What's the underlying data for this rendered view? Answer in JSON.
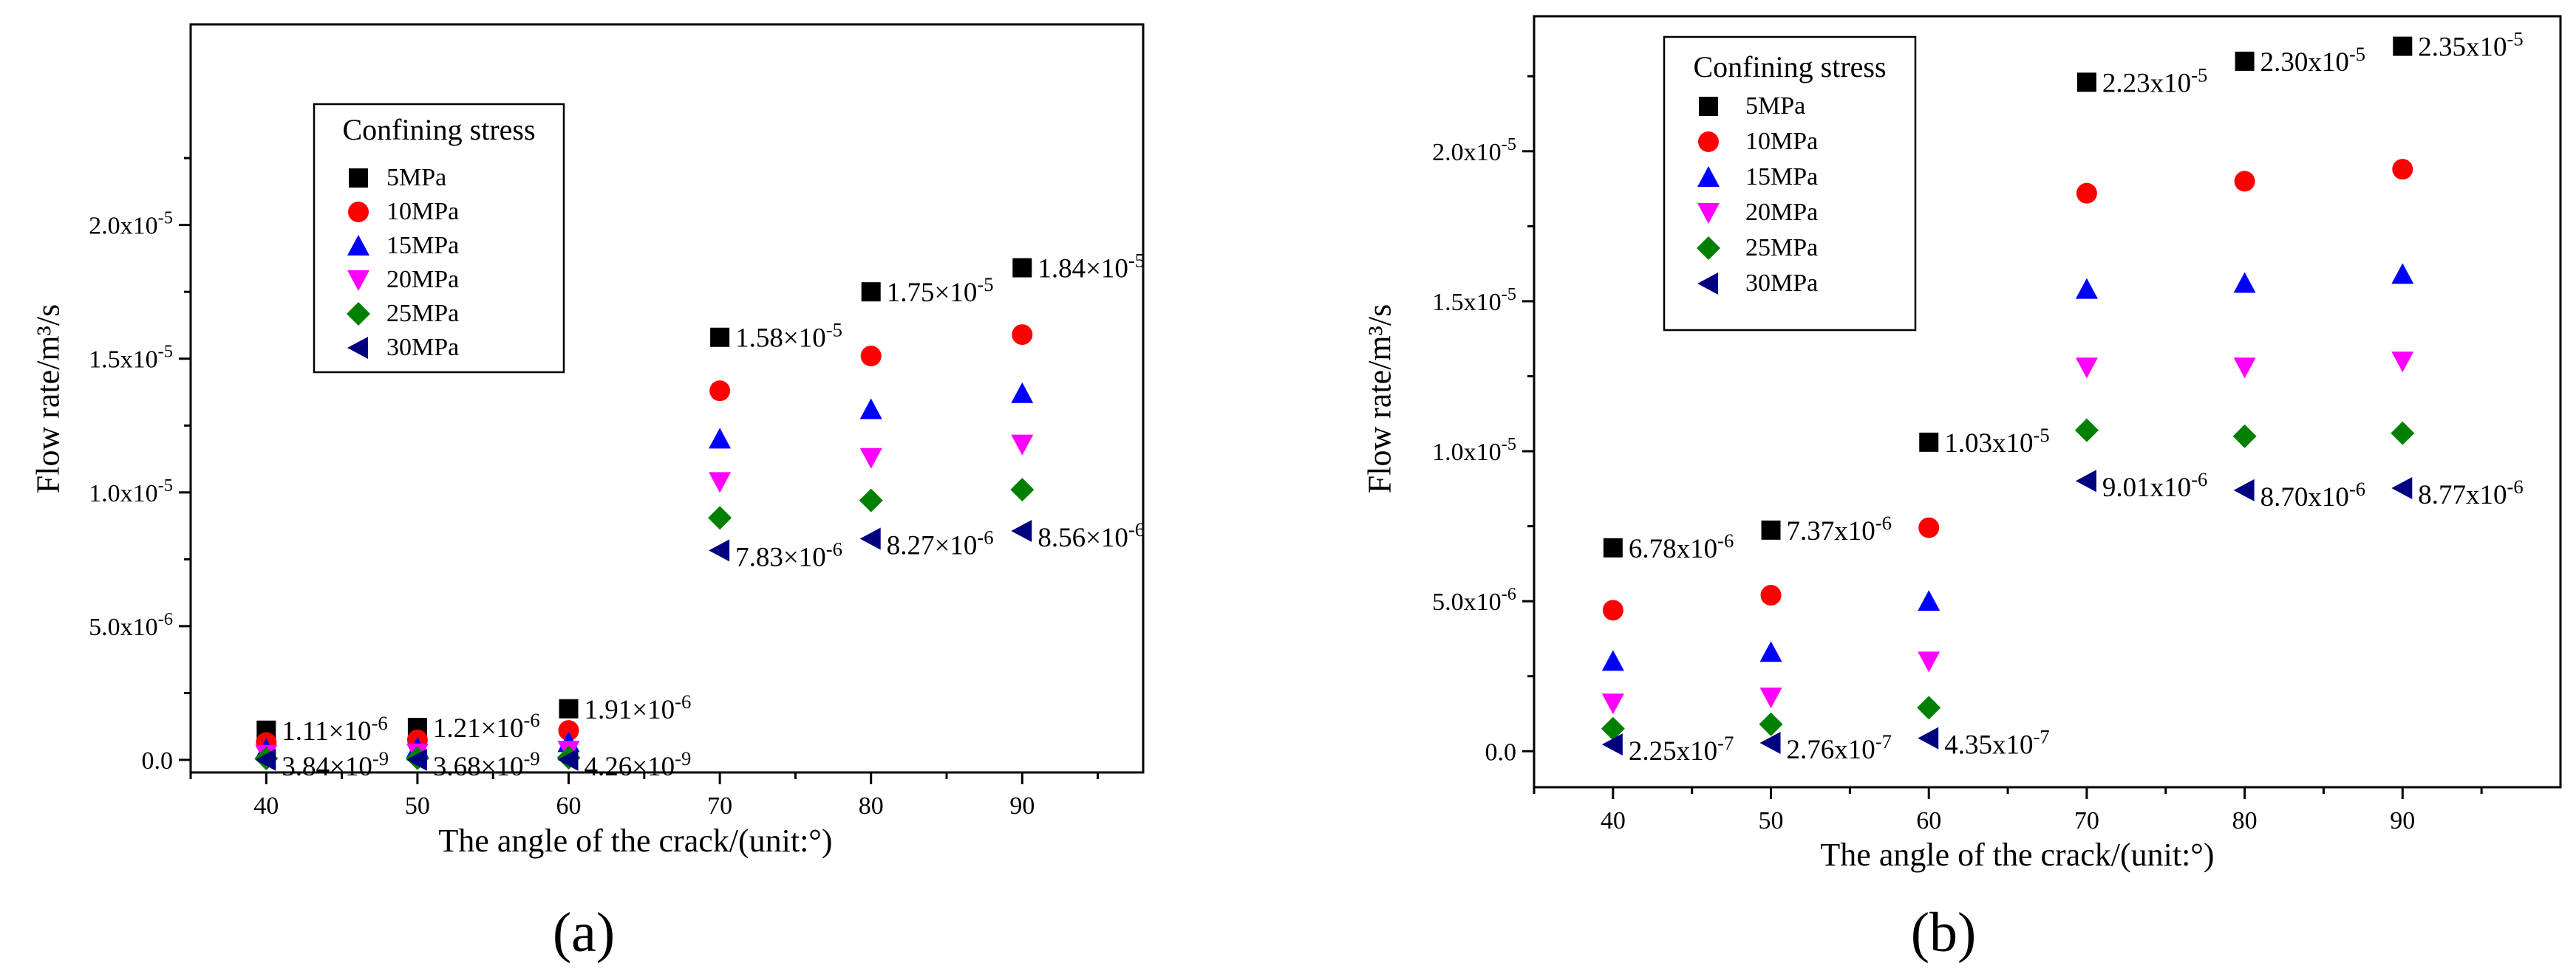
{
  "figure": {
    "panels": [
      "a",
      "b"
    ]
  },
  "chart_data": [
    {
      "type": "scatter",
      "panel_label": "(a)",
      "xlabel": "The angle of the crack/(unit:°)",
      "ylabel": "Flow rate/m³/s",
      "x": [
        40,
        50,
        60,
        70,
        80,
        90
      ],
      "xlim": [
        35,
        98
      ],
      "ylim": [
        -4.7e-07,
        2.75e-05
      ],
      "xticks": [
        40,
        50,
        60,
        70,
        80,
        90
      ],
      "yticks": [
        {
          "value": 0,
          "mant": "0.0",
          "exp": ""
        },
        {
          "value": 5e-06,
          "mant": "5.0x10",
          "exp": "-6"
        },
        {
          "value": 1e-05,
          "mant": "1.0x10",
          "exp": "-5"
        },
        {
          "value": 1.5e-05,
          "mant": "1.5x10",
          "exp": "-5"
        },
        {
          "value": 2e-05,
          "mant": "2.0x10",
          "exp": "-5"
        }
      ],
      "legend": {
        "title": "Confining stress",
        "position": "upper-left"
      },
      "series": [
        {
          "name": "5MPa",
          "marker": "square",
          "color": "#000000",
          "values": [
            1.11e-06,
            1.21e-06,
            1.91e-06,
            1.58e-05,
            1.75e-05,
            1.84e-05
          ]
        },
        {
          "name": "10MPa",
          "marker": "circle",
          "color": "#ff0000",
          "values": [
            6.5e-07,
            7.5e-07,
            1.1e-06,
            1.38e-05,
            1.51e-05,
            1.59e-05
          ]
        },
        {
          "name": "15MPa",
          "marker": "triangle-up",
          "color": "#0000ff",
          "values": [
            4e-07,
            4.5e-07,
            6.5e-07,
            1.2e-05,
            1.31e-05,
            1.37e-05
          ]
        },
        {
          "name": "20MPa",
          "marker": "triangle-down",
          "color": "#ff00ff",
          "values": [
            2e-07,
            2.5e-07,
            3.5e-07,
            1.04e-05,
            1.13e-05,
            1.18e-05
          ]
        },
        {
          "name": "25MPa",
          "marker": "diamond",
          "color": "#008000",
          "values": [
            5e-08,
            6e-08,
            8e-08,
            9.05e-06,
            9.7e-06,
            1.01e-05
          ]
        },
        {
          "name": "30MPa",
          "marker": "triangle-left",
          "color": "#000080",
          "values": [
            3.84e-09,
            3.68e-09,
            4.26e-09,
            7.83e-06,
            8.27e-06,
            8.56e-06
          ]
        }
      ],
      "annotations": [
        {
          "x": 40,
          "series": 0,
          "mant": "1.11×10",
          "exp": "-6"
        },
        {
          "x": 50,
          "series": 0,
          "mant": "1.21×10",
          "exp": "-6"
        },
        {
          "x": 60,
          "series": 0,
          "mant": "1.91×10",
          "exp": "-6"
        },
        {
          "x": 70,
          "series": 0,
          "mant": "1.58×10",
          "exp": "-5"
        },
        {
          "x": 80,
          "series": 0,
          "mant": "1.75×10",
          "exp": "-5"
        },
        {
          "x": 90,
          "series": 0,
          "mant": "1.84×10",
          "exp": "-5"
        },
        {
          "x": 40,
          "series": 5,
          "mant": "3.84×10",
          "exp": "-9"
        },
        {
          "x": 50,
          "series": 5,
          "mant": "3.68×10",
          "exp": "-9"
        },
        {
          "x": 60,
          "series": 5,
          "mant": "4.26×10",
          "exp": "-9"
        },
        {
          "x": 70,
          "series": 5,
          "mant": "7.83×10",
          "exp": "-6"
        },
        {
          "x": 80,
          "series": 5,
          "mant": "8.27×10",
          "exp": "-6"
        },
        {
          "x": 90,
          "series": 5,
          "mant": "8.56×10",
          "exp": "-6"
        }
      ]
    },
    {
      "type": "scatter",
      "panel_label": "(b)",
      "xlabel": "The angle of the crack/(unit:°)",
      "ylabel": "Flow rate/m³/s",
      "x": [
        40,
        50,
        60,
        70,
        80,
        90
      ],
      "xlim": [
        35,
        100
      ],
      "ylim": [
        -1.2e-06,
        2.45e-05
      ],
      "xticks": [
        40,
        50,
        60,
        70,
        80,
        90
      ],
      "yticks": [
        {
          "value": 0,
          "mant": "0.0",
          "exp": ""
        },
        {
          "value": 5e-06,
          "mant": "5.0x10",
          "exp": "-6"
        },
        {
          "value": 1e-05,
          "mant": "1.0x10",
          "exp": "-5"
        },
        {
          "value": 1.5e-05,
          "mant": "1.5x10",
          "exp": "-5"
        },
        {
          "value": 2e-05,
          "mant": "2.0x10",
          "exp": "-5"
        }
      ],
      "legend": {
        "title": "Confining stress",
        "position": "upper-left"
      },
      "series": [
        {
          "name": "5MPa",
          "marker": "square",
          "color": "#000000",
          "values": [
            6.78e-06,
            7.37e-06,
            1.03e-05,
            2.23e-05,
            2.3e-05,
            2.35e-05
          ]
        },
        {
          "name": "10MPa",
          "marker": "circle",
          "color": "#ff0000",
          "values": [
            4.7e-06,
            5.2e-06,
            7.45e-06,
            1.86e-05,
            1.9e-05,
            1.94e-05
          ]
        },
        {
          "name": "15MPa",
          "marker": "triangle-up",
          "color": "#0000ff",
          "values": [
            3e-06,
            3.3e-06,
            5e-06,
            1.54e-05,
            1.56e-05,
            1.59e-05
          ]
        },
        {
          "name": "20MPa",
          "marker": "triangle-down",
          "color": "#ff00ff",
          "values": [
            1.6e-06,
            1.8e-06,
            3e-06,
            1.28e-05,
            1.28e-05,
            1.3e-05
          ]
        },
        {
          "name": "25MPa",
          "marker": "diamond",
          "color": "#008000",
          "values": [
            7.5e-07,
            9e-07,
            1.45e-06,
            1.07e-05,
            1.05e-05,
            1.06e-05
          ]
        },
        {
          "name": "30MPa",
          "marker": "triangle-left",
          "color": "#000080",
          "values": [
            2.25e-07,
            2.76e-07,
            4.35e-07,
            9.01e-06,
            8.7e-06,
            8.77e-06
          ]
        }
      ],
      "annotations": [
        {
          "x": 40,
          "series": 0,
          "mant": "6.78x10",
          "exp": "-6"
        },
        {
          "x": 50,
          "series": 0,
          "mant": "7.37x10",
          "exp": "-6"
        },
        {
          "x": 60,
          "series": 0,
          "mant": "1.03x10",
          "exp": "-5"
        },
        {
          "x": 70,
          "series": 0,
          "mant": "2.23x10",
          "exp": "-5"
        },
        {
          "x": 80,
          "series": 0,
          "mant": "2.30x10",
          "exp": "-5"
        },
        {
          "x": 90,
          "series": 0,
          "mant": "2.35x10",
          "exp": "-5"
        },
        {
          "x": 40,
          "series": 5,
          "mant": "2.25x10",
          "exp": "-7"
        },
        {
          "x": 50,
          "series": 5,
          "mant": "2.76x10",
          "exp": "-7"
        },
        {
          "x": 60,
          "series": 5,
          "mant": "4.35x10",
          "exp": "-7"
        },
        {
          "x": 70,
          "series": 5,
          "mant": "9.01x10",
          "exp": "-6"
        },
        {
          "x": 80,
          "series": 5,
          "mant": "8.70x10",
          "exp": "-6"
        },
        {
          "x": 90,
          "series": 5,
          "mant": "8.77x10",
          "exp": "-6"
        }
      ]
    }
  ]
}
